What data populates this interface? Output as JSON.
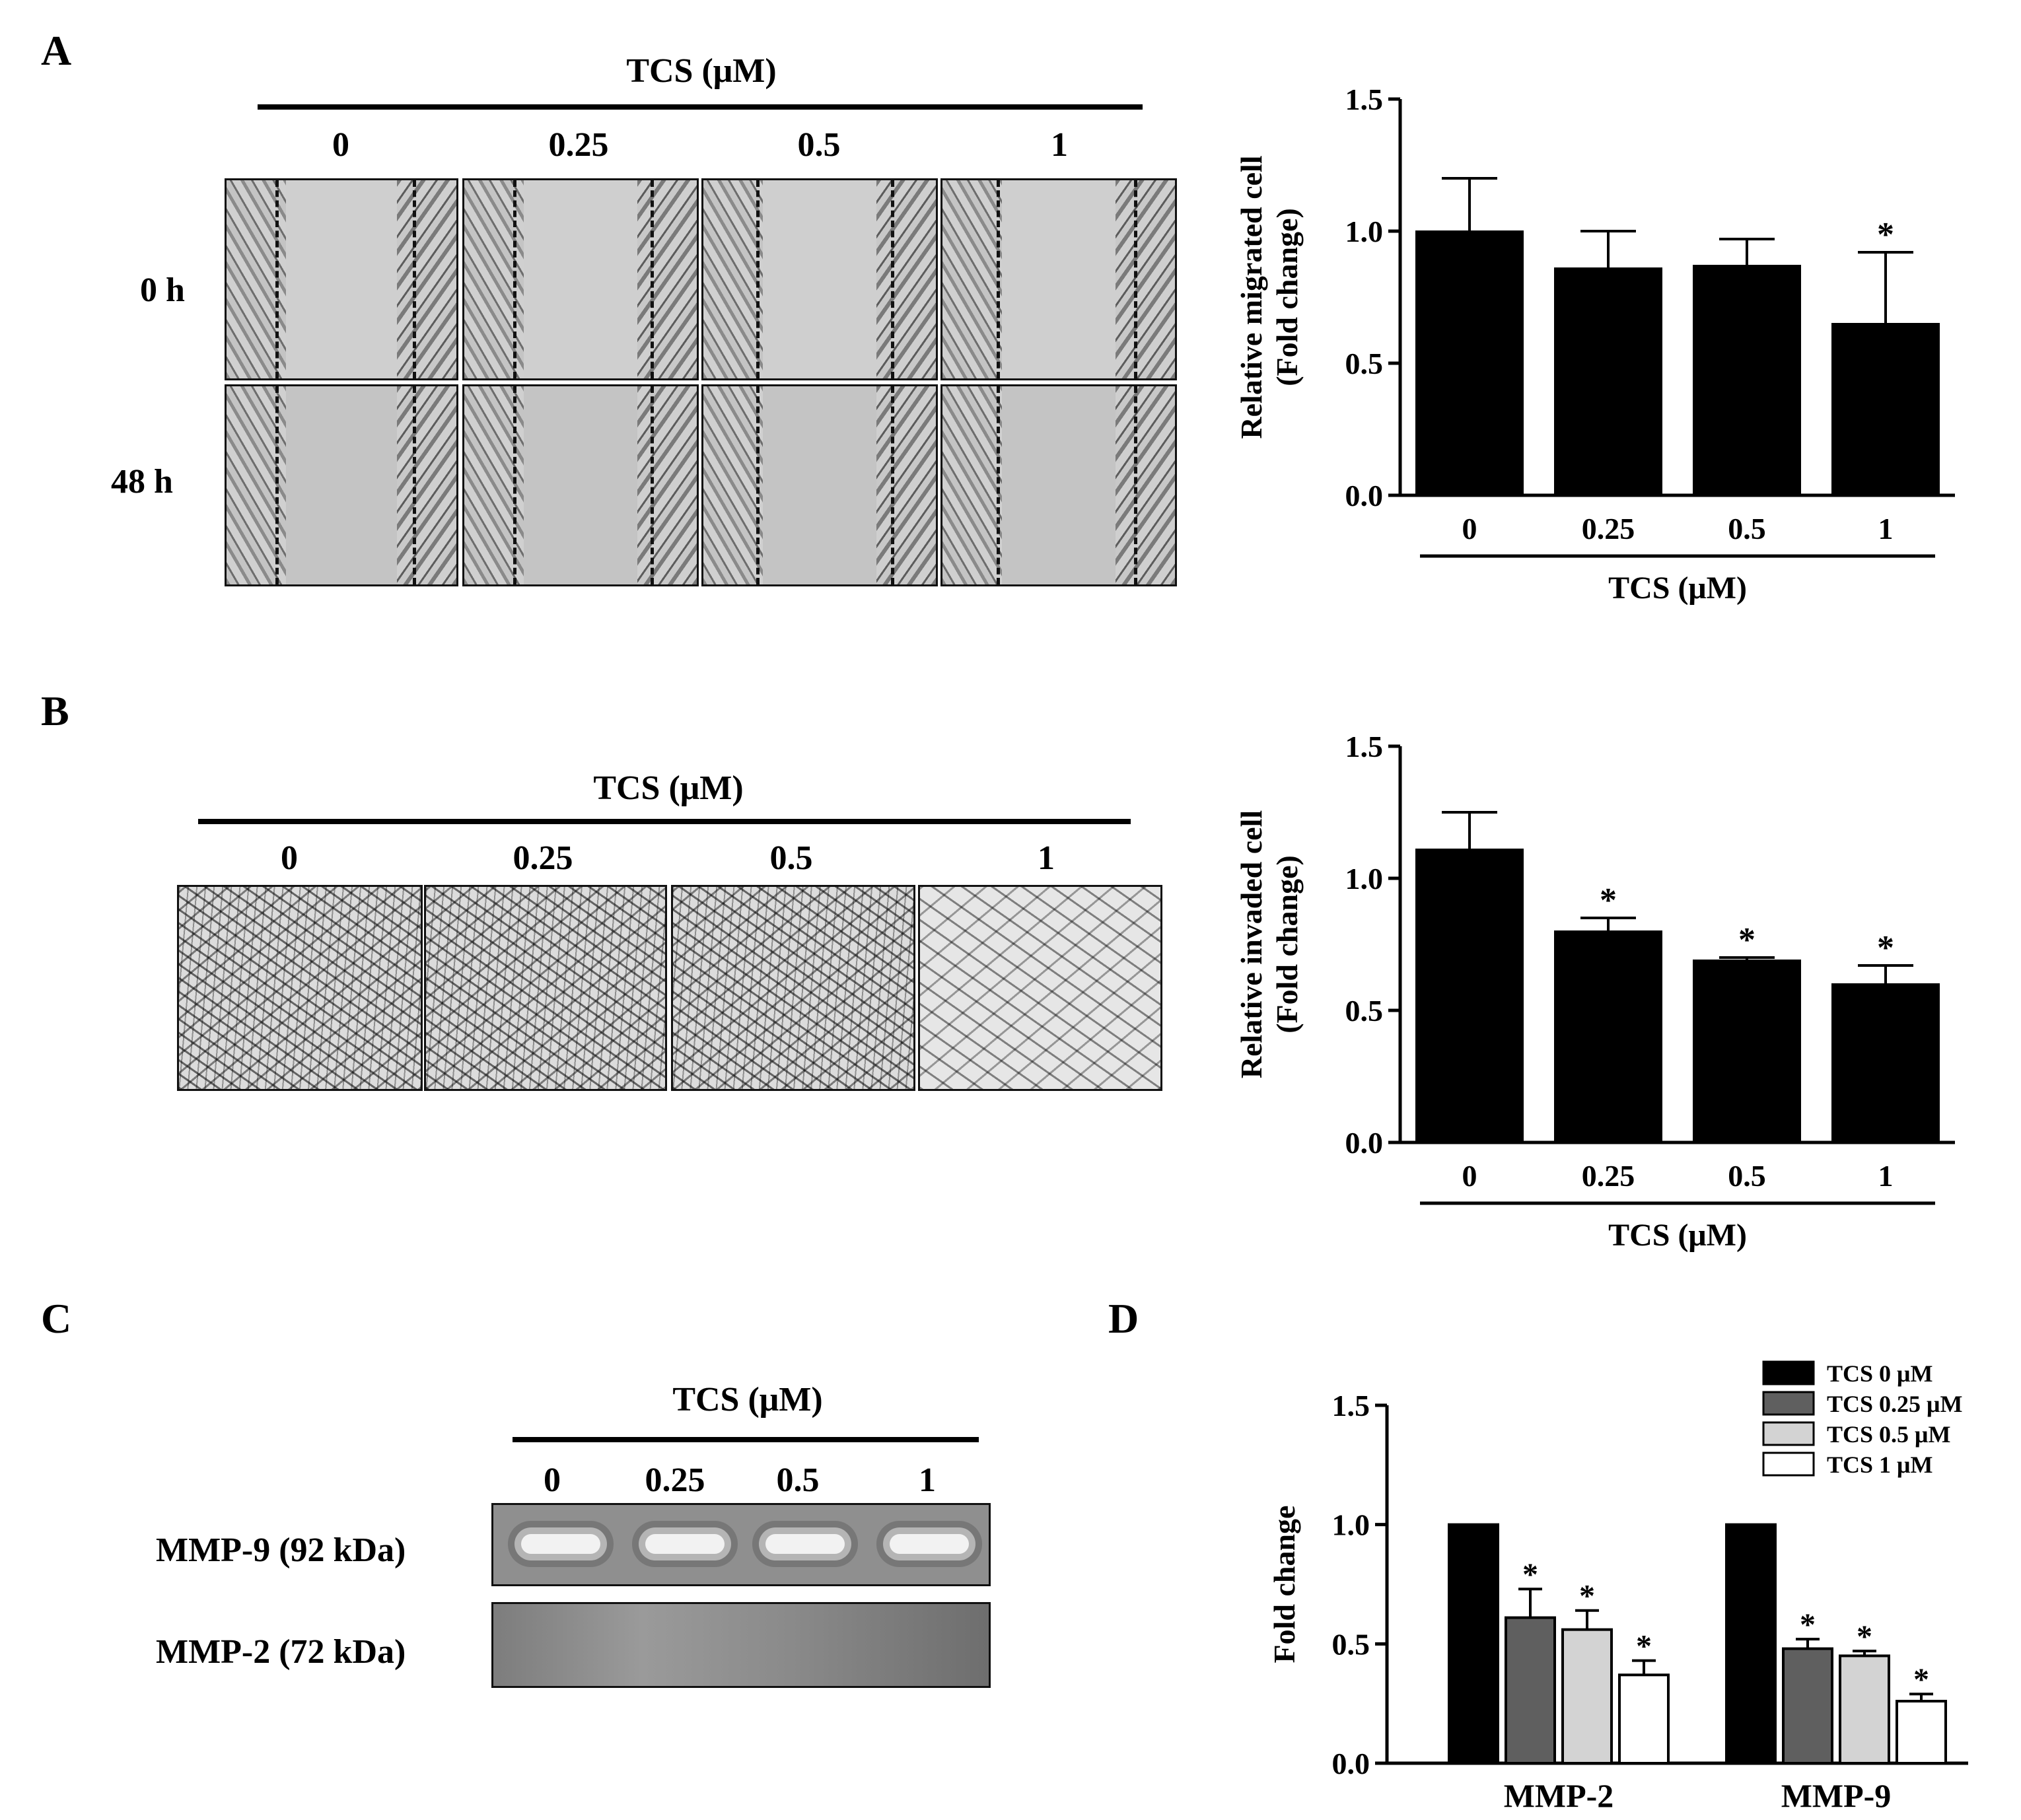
{
  "panels": {
    "A": {
      "label": "A",
      "treatment_title": "TCS (μM)",
      "concentrations": [
        "0",
        "0.25",
        "0.5",
        "1"
      ],
      "row_labels": [
        "0 h",
        "48 h"
      ]
    },
    "B": {
      "label": "B",
      "treatment_title": "TCS (μM)",
      "concentrations": [
        "0",
        "0.25",
        "0.5",
        "1"
      ]
    },
    "C": {
      "label": "C",
      "treatment_title": "TCS (μM)",
      "concentrations": [
        "0",
        "0.25",
        "0.5",
        "1"
      ],
      "lane_labels": [
        "MMP-9 (92 kDa)",
        "MMP-2 (72 kDa)"
      ]
    },
    "D": {
      "label": "D"
    }
  },
  "chart_data": [
    {
      "type": "bar",
      "panel": "A",
      "categories": [
        "0",
        "0.25",
        "0.5",
        "1"
      ],
      "values": [
        1.0,
        0.86,
        0.87,
        0.65
      ],
      "errors": [
        0.2,
        0.14,
        0.1,
        0.27
      ],
      "significant": [
        false,
        false,
        false,
        true
      ],
      "ylabel": "Relative migrated cell (Fold change)",
      "xlabel": "TCS (μM)",
      "ylim": [
        0,
        1.5
      ],
      "yticks": [
        "0.0",
        "0.5",
        "1.0",
        "1.5"
      ],
      "bar_color": "#000000"
    },
    {
      "type": "bar",
      "panel": "B",
      "categories": [
        "0",
        "0.25",
        "0.5",
        "1"
      ],
      "values": [
        1.11,
        0.8,
        0.69,
        0.6
      ],
      "errors": [
        0.14,
        0.05,
        0.01,
        0.07
      ],
      "significant": [
        false,
        true,
        true,
        true
      ],
      "ylabel": "Relative invaded cell (Fold change)",
      "xlabel": "TCS (μM)",
      "ylim": [
        0,
        1.5
      ],
      "yticks": [
        "0.0",
        "0.5",
        "1.0",
        "1.5"
      ],
      "bar_color": "#000000"
    },
    {
      "type": "bar",
      "panel": "D",
      "categories": [
        "MMP-2",
        "MMP-9"
      ],
      "series": [
        {
          "name": "TCS 0 μM",
          "color": "#000000",
          "values": [
            1.0,
            1.0
          ],
          "errors": [
            0,
            0
          ],
          "significant": [
            false,
            false
          ]
        },
        {
          "name": "TCS 0.25 μM",
          "color": "#5f5f5f",
          "values": [
            0.61,
            0.48
          ],
          "errors": [
            0.12,
            0.04
          ],
          "significant": [
            true,
            true
          ]
        },
        {
          "name": "TCS 0.5 μM",
          "color": "#d3d3d3",
          "values": [
            0.56,
            0.45
          ],
          "errors": [
            0.08,
            0.02
          ],
          "significant": [
            true,
            true
          ]
        },
        {
          "name": "TCS 1 μM",
          "color": "#ffffff",
          "values": [
            0.37,
            0.26
          ],
          "errors": [
            0.06,
            0.03
          ],
          "significant": [
            true,
            true
          ]
        }
      ],
      "ylabel": "Fold change",
      "ylim": [
        0,
        1.5
      ],
      "yticks": [
        "0.0",
        "0.5",
        "1.0",
        "1.5"
      ],
      "legend_position": "top-right"
    }
  ]
}
